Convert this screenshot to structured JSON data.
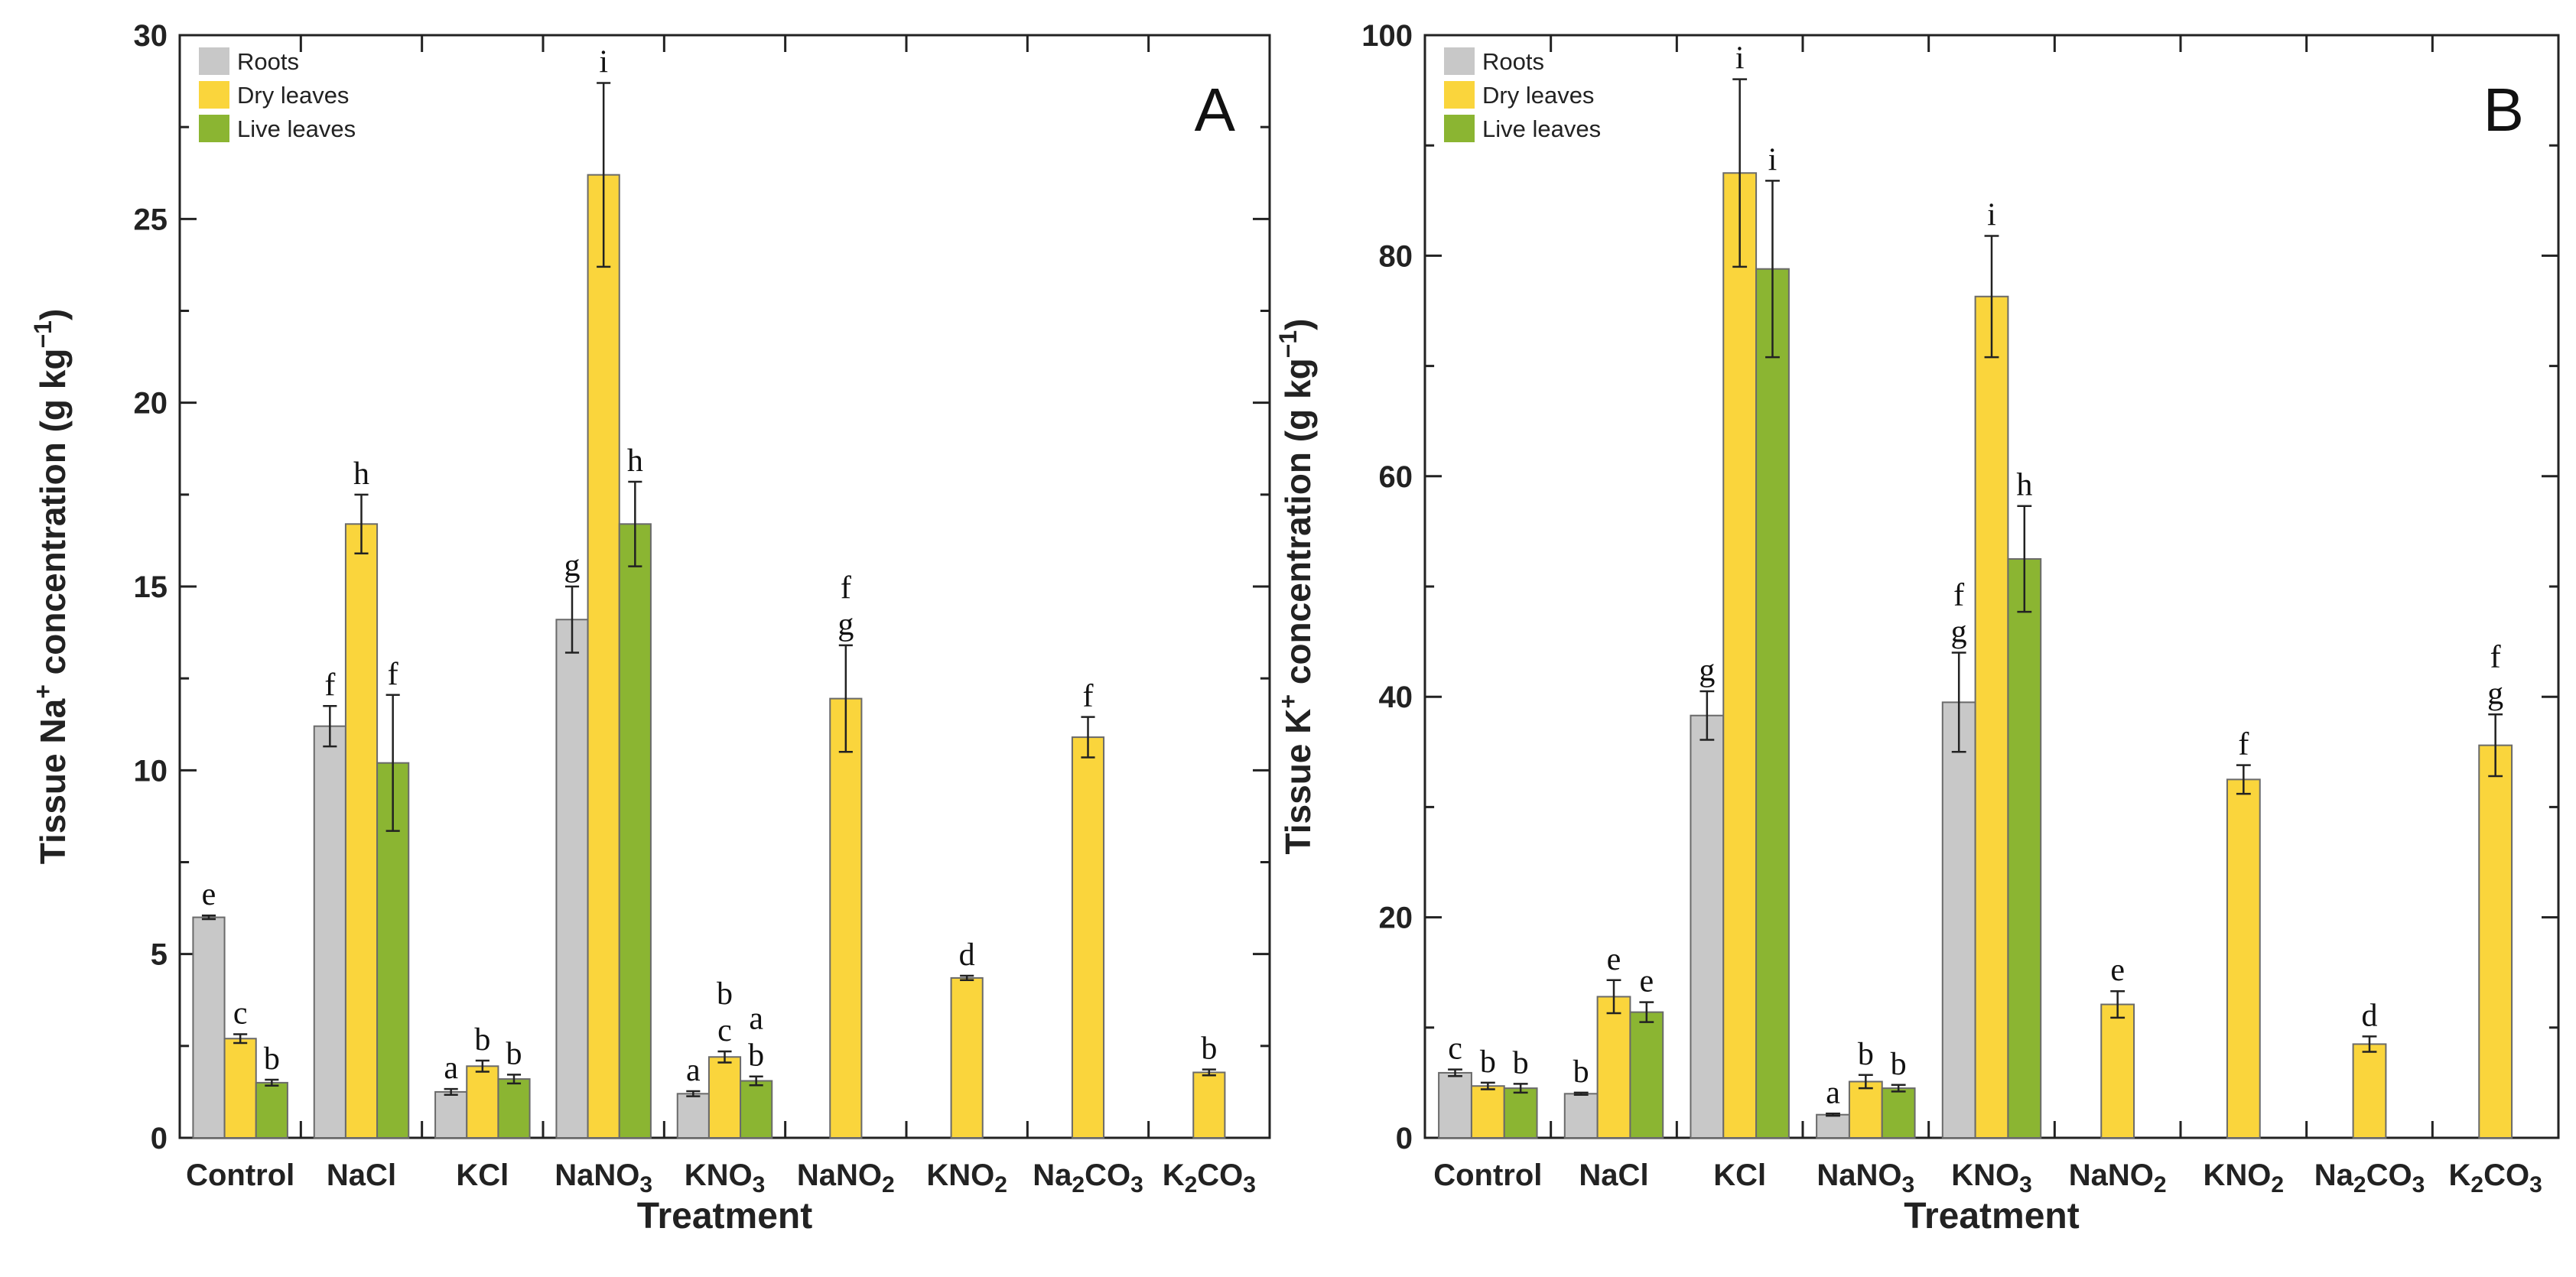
{
  "colors": {
    "Roots": "#c8c8c8",
    "Dry leaves": "#fad53c",
    "Live leaves": "#8bb532",
    "bar_stroke": "#6a6a6a",
    "axis": "#222222"
  },
  "legend_entries": [
    "Roots",
    "Dry leaves",
    "Live leaves"
  ],
  "chart_data": [
    {
      "type": "bar",
      "panel_label": "A",
      "xlabel": "Treatment",
      "ylabel_main": "Tissue Na",
      "ylabel_sup": "+",
      "ylabel_tail": " concentration (g kg",
      "ylabel_unit_sup": "−1",
      "ylabel_close": ")",
      "ylim": [
        0,
        30
      ],
      "yticks": [
        "0",
        "5",
        "10",
        "15",
        "20",
        "25",
        "30"
      ],
      "legend_position": "top-left",
      "categories": [
        {
          "base": "Control",
          "sub": ""
        },
        {
          "base": "NaCl",
          "sub": ""
        },
        {
          "base": "KCl",
          "sub": ""
        },
        {
          "base": "NaNO",
          "sub": "3"
        },
        {
          "base": "KNO",
          "sub": "3"
        },
        {
          "base": "NaNO",
          "sub": "2"
        },
        {
          "base": "KNO",
          "sub": "2"
        },
        {
          "base": "Na",
          "sub": "2",
          "tail": "CO",
          "sub2": "3"
        },
        {
          "base": "K",
          "sub": "2",
          "tail": "CO",
          "sub2": "3"
        }
      ],
      "groups": [
        {
          "category": "Control",
          "bars": [
            {
              "series": "Roots",
              "value": 6.0,
              "err": 0.05,
              "letters": [
                "e"
              ]
            },
            {
              "series": "Dry leaves",
              "value": 2.7,
              "err": 0.12,
              "letters": [
                "c"
              ]
            },
            {
              "series": "Live leaves",
              "value": 1.5,
              "err": 0.08,
              "letters": [
                "b"
              ]
            }
          ]
        },
        {
          "category": "NaCl",
          "bars": [
            {
              "series": "Roots",
              "value": 11.2,
              "err": 0.55,
              "letters": [
                "f"
              ]
            },
            {
              "series": "Dry leaves",
              "value": 16.7,
              "err": 0.8,
              "letters": [
                "h"
              ]
            },
            {
              "series": "Live leaves",
              "value": 10.2,
              "err": 1.85,
              "letters": [
                "f"
              ]
            }
          ]
        },
        {
          "category": "KCl",
          "bars": [
            {
              "series": "Roots",
              "value": 1.25,
              "err": 0.08,
              "letters": [
                "a"
              ]
            },
            {
              "series": "Dry leaves",
              "value": 1.95,
              "err": 0.15,
              "letters": [
                "b"
              ]
            },
            {
              "series": "Live leaves",
              "value": 1.6,
              "err": 0.12,
              "letters": [
                "b"
              ]
            }
          ]
        },
        {
          "category": "NaNO3",
          "bars": [
            {
              "series": "Roots",
              "value": 14.1,
              "err": 0.9,
              "letters": [
                "g"
              ]
            },
            {
              "series": "Dry leaves",
              "value": 26.2,
              "err": 2.5,
              "letters": [
                "i"
              ]
            },
            {
              "series": "Live leaves",
              "value": 16.7,
              "err": 1.15,
              "letters": [
                "h"
              ]
            }
          ]
        },
        {
          "category": "KNO3",
          "bars": [
            {
              "series": "Roots",
              "value": 1.2,
              "err": 0.07,
              "letters": [
                "a"
              ]
            },
            {
              "series": "Dry leaves",
              "value": 2.2,
              "err": 0.15,
              "letters": [
                "c",
                "b"
              ]
            },
            {
              "series": "Live leaves",
              "value": 1.55,
              "err": 0.12,
              "letters": [
                "b",
                "a"
              ]
            }
          ]
        },
        {
          "category": "NaNO2",
          "bars": [
            {
              "series": "Dry leaves",
              "value": 11.95,
              "err": 1.45,
              "letters": [
                "g",
                "f"
              ]
            }
          ]
        },
        {
          "category": "KNO2",
          "bars": [
            {
              "series": "Dry leaves",
              "value": 4.35,
              "err": 0.06,
              "letters": [
                "d"
              ]
            }
          ]
        },
        {
          "category": "Na2CO3",
          "bars": [
            {
              "series": "Dry leaves",
              "value": 10.9,
              "err": 0.55,
              "letters": [
                "f"
              ]
            }
          ]
        },
        {
          "category": "K2CO3",
          "bars": [
            {
              "series": "Dry leaves",
              "value": 1.78,
              "err": 0.08,
              "letters": [
                "b"
              ]
            }
          ]
        }
      ]
    },
    {
      "type": "bar",
      "panel_label": "B",
      "xlabel": "Treatment",
      "ylabel_main": "Tissue K",
      "ylabel_sup": "+",
      "ylabel_tail": " concentration (g kg",
      "ylabel_unit_sup": "−1",
      "ylabel_close": ")",
      "ylim": [
        0,
        100
      ],
      "yticks": [
        "0",
        "20",
        "40",
        "60",
        "80",
        "100"
      ],
      "legend_position": "top-left",
      "categories": [
        {
          "base": "Control",
          "sub": ""
        },
        {
          "base": "NaCl",
          "sub": ""
        },
        {
          "base": "KCl",
          "sub": ""
        },
        {
          "base": "NaNO",
          "sub": "3"
        },
        {
          "base": "KNO",
          "sub": "3"
        },
        {
          "base": "NaNO",
          "sub": "2"
        },
        {
          "base": "KNO",
          "sub": "2"
        },
        {
          "base": "Na",
          "sub": "2",
          "tail": "CO",
          "sub2": "3"
        },
        {
          "base": "K",
          "sub": "2",
          "tail": "CO",
          "sub2": "3"
        }
      ],
      "groups": [
        {
          "category": "Control",
          "bars": [
            {
              "series": "Roots",
              "value": 5.9,
              "err": 0.3,
              "letters": [
                "c"
              ]
            },
            {
              "series": "Dry leaves",
              "value": 4.7,
              "err": 0.3,
              "letters": [
                "b"
              ]
            },
            {
              "series": "Live leaves",
              "value": 4.5,
              "err": 0.4,
              "letters": [
                "b"
              ]
            }
          ]
        },
        {
          "category": "NaCl",
          "bars": [
            {
              "series": "Roots",
              "value": 4.0,
              "err": 0.1,
              "letters": [
                "b"
              ]
            },
            {
              "series": "Dry leaves",
              "value": 12.8,
              "err": 1.5,
              "letters": [
                "e"
              ]
            },
            {
              "series": "Live leaves",
              "value": 11.4,
              "err": 0.9,
              "letters": [
                "e"
              ]
            }
          ]
        },
        {
          "category": "KCl",
          "bars": [
            {
              "series": "Roots",
              "value": 38.3,
              "err": 2.2,
              "letters": [
                "g"
              ]
            },
            {
              "series": "Dry leaves",
              "value": 87.5,
              "err": 8.5,
              "letters": [
                "i"
              ]
            },
            {
              "series": "Live leaves",
              "value": 78.8,
              "err": 8.0,
              "letters": [
                "i"
              ]
            }
          ]
        },
        {
          "category": "NaNO3",
          "bars": [
            {
              "series": "Roots",
              "value": 2.1,
              "err": 0.1,
              "letters": [
                "a"
              ]
            },
            {
              "series": "Dry leaves",
              "value": 5.1,
              "err": 0.6,
              "letters": [
                "b"
              ]
            },
            {
              "series": "Live leaves",
              "value": 4.5,
              "err": 0.3,
              "letters": [
                "b"
              ]
            }
          ]
        },
        {
          "category": "KNO3",
          "bars": [
            {
              "series": "Roots",
              "value": 39.5,
              "err": 4.5,
              "letters": [
                "g",
                "f"
              ]
            },
            {
              "series": "Dry leaves",
              "value": 76.3,
              "err": 5.5,
              "letters": [
                "i"
              ]
            },
            {
              "series": "Live leaves",
              "value": 52.5,
              "err": 4.8,
              "letters": [
                "h"
              ]
            }
          ]
        },
        {
          "category": "NaNO2",
          "bars": [
            {
              "series": "Dry leaves",
              "value": 12.1,
              "err": 1.2,
              "letters": [
                "e"
              ]
            }
          ]
        },
        {
          "category": "KNO2",
          "bars": [
            {
              "series": "Dry leaves",
              "value": 32.5,
              "err": 1.3,
              "letters": [
                "f"
              ]
            }
          ]
        },
        {
          "category": "Na2CO3",
          "bars": [
            {
              "series": "Dry leaves",
              "value": 8.5,
              "err": 0.7,
              "letters": [
                "d"
              ]
            }
          ]
        },
        {
          "category": "K2CO3",
          "bars": [
            {
              "series": "Dry leaves",
              "value": 35.6,
              "err": 2.8,
              "letters": [
                "g",
                "f"
              ]
            }
          ]
        }
      ]
    }
  ]
}
